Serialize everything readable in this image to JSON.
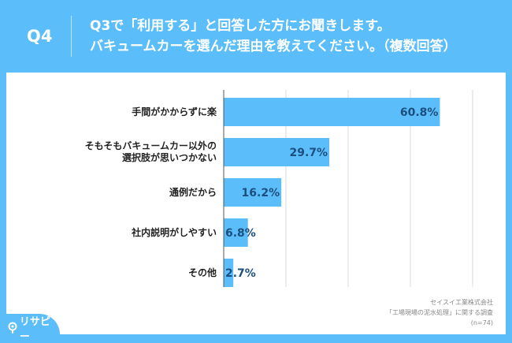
{
  "header": {
    "question_no": "Q4",
    "title_line1": "Q3で「利用する」と回答した方にお聞きします。",
    "title_line2": "バキュームカーを選んだ理由を教えてください。（複数回答）"
  },
  "chart_data": {
    "type": "bar",
    "orientation": "horizontal",
    "categories": [
      "手間がかからずに楽",
      "そもそもバキュームカー以外の\n選択肢が思いつかない",
      "通例だから",
      "社内説明がしやすい",
      "その他"
    ],
    "category_lines": [
      [
        "手間がかからずに楽"
      ],
      [
        "そもそもバキュームカー以外の",
        "選択肢が思いつかない"
      ],
      [
        "通例だから"
      ],
      [
        "社内説明がしやすい"
      ],
      [
        "その他"
      ]
    ],
    "values": [
      60.8,
      29.7,
      16.2,
      6.8,
      2.7
    ],
    "data_labels": [
      "60.8%",
      "29.7%",
      "16.2%",
      "6.8%",
      "2.7%"
    ],
    "xlim": [
      0,
      70
    ],
    "grid": true,
    "bar_color": "#5bbefa",
    "label_color": "#1c4f7f"
  },
  "source": {
    "line1": "セイスイ工業株式会社",
    "line2": "「工場現場の泥水処理」に関する調査",
    "line3": "(n=74)"
  },
  "logo": {
    "text": "リサピー"
  }
}
